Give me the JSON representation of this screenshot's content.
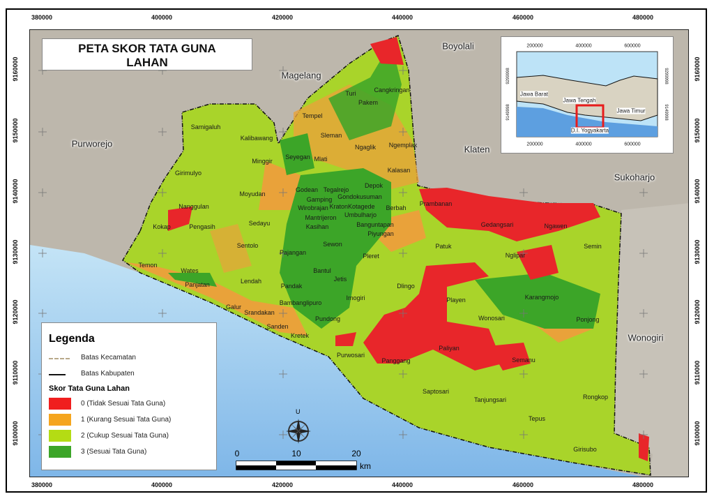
{
  "title": "PETA SKOR TATA GUNA LAHAN",
  "axes": {
    "x_ticks": [
      "380000",
      "400000",
      "420000",
      "440000",
      "460000",
      "480000"
    ],
    "y_ticks": [
      "9160000",
      "9150000",
      "9140000",
      "9130000",
      "9120000",
      "9110000",
      "9100000"
    ]
  },
  "surrounding_regions": [
    "Magelang",
    "Boyolali",
    "Purworejo",
    "Klaten",
    "Sukoharjo",
    "Wonogiri"
  ],
  "districts": [
    "Samigaluh",
    "Kalibawang",
    "Girimulyo",
    "Nanggulan",
    "Kokap",
    "Pengasih",
    "Temon",
    "Wates",
    "Panjatan",
    "Sentolo",
    "Lendah",
    "Galur",
    "Srandakan",
    "Sanden",
    "Kretek",
    "Pandak",
    "Bambanglipuro",
    "Pundong",
    "Imogiri",
    "Jetis",
    "Bantul",
    "Pajangan",
    "Sewon",
    "Sedayu",
    "Moyudan",
    "Minggir",
    "Seyegan",
    "Mlati",
    "Godean",
    "Gamping",
    "Tegalrejo",
    "Gondokusuman",
    "Wirobrajan",
    "KratonKotagede",
    "Mantrijeron",
    "Umbulharjo",
    "Kasihan",
    "Banguntapan",
    "Piyungan",
    "Berbah",
    "Prambanan",
    "Kalasan",
    "Depok",
    "Ngemplak",
    "Ngaglik",
    "Sleman",
    "Tempel",
    "Turi",
    "Pakem",
    "Cangkringan",
    "Pleret",
    "Dlingo",
    "Playen",
    "Patuk",
    "Gedangsari",
    "Ngawen",
    "Semin",
    "Nglipar",
    "Karangmojo",
    "Wonosari",
    "Ponjong",
    "Purwosari",
    "Panggang",
    "Paliyan",
    "Semanu",
    "Saptosari",
    "Tanjungsari",
    "Tepus",
    "Rongkop",
    "Girisubo"
  ],
  "inset": {
    "x_ticks": [
      "200000",
      "400000",
      "600000"
    ],
    "y_ticks": [
      "9299998",
      "9149998"
    ],
    "labels": [
      "Jawa Barat",
      "Jawa Tengah",
      "Jawa Timur",
      "D.I. Yogyakarta"
    ],
    "highlight_color": "#e81c1c"
  },
  "legend": {
    "title": "Legenda",
    "lines": [
      {
        "label": "Batas Kecamatan",
        "color": "#b8a98a"
      },
      {
        "label": "Batas Kabupaten",
        "color": "#111111"
      }
    ],
    "classes_title": "Skor Tata Guna Lahan",
    "classes": [
      {
        "label": "0 (Tidak Sesuai Tata Guna)",
        "color": "#f01e1e"
      },
      {
        "label": "1 (Kurang Sesuai Tata Guna)",
        "color": "#f5a51e"
      },
      {
        "label": "2 (Cukup Sesuai Tata Guna)",
        "color": "#b4dc14"
      },
      {
        "label": "3 (Sesuai Tata Guna)",
        "color": "#3ca528"
      }
    ]
  },
  "north_arrow": {
    "label": "U"
  },
  "scale_bar": {
    "ticks": [
      "0",
      "10",
      "20"
    ],
    "unit": "km"
  }
}
